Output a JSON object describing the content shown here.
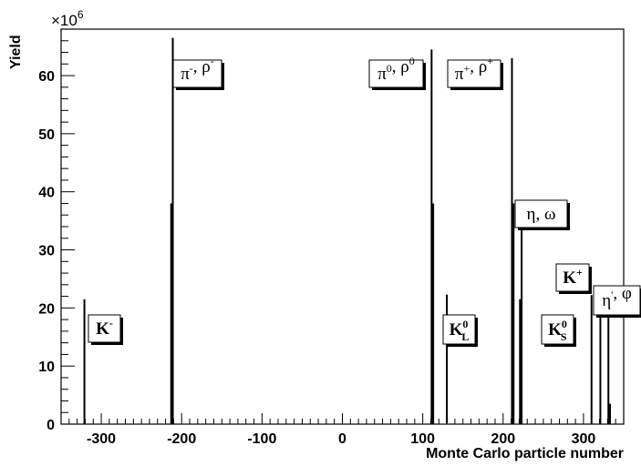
{
  "chart_data": {
    "type": "bar",
    "xlabel": "Monte Carlo particle number",
    "ylabel": "Yield",
    "y_multiplier": "×10",
    "y_multiplier_exp": "6",
    "xlim": [
      -350,
      350
    ],
    "ylim": [
      0,
      68
    ],
    "x_ticks": [
      -300,
      -200,
      -100,
      0,
      100,
      200,
      300
    ],
    "y_ticks": [
      0,
      10,
      20,
      30,
      40,
      50,
      60
    ],
    "grid": false,
    "bars": [
      {
        "x": -321,
        "y": 21.5
      },
      {
        "x": -213,
        "y": 38
      },
      {
        "x": -211,
        "y": 66.5
      },
      {
        "x": 111,
        "y": 64.5
      },
      {
        "x": 113,
        "y": 38
      },
      {
        "x": 130,
        "y": 22.3
      },
      {
        "x": 211,
        "y": 63
      },
      {
        "x": 213,
        "y": 38
      },
      {
        "x": 221,
        "y": 21.5
      },
      {
        "x": 223,
        "y": 37.8
      },
      {
        "x": 310,
        "y": 22.2
      },
      {
        "x": 321,
        "y": 22.8
      },
      {
        "x": 331,
        "y": 19.5
      },
      {
        "x": 333,
        "y": 3.5
      }
    ],
    "annotations": [
      {
        "id": "kminus",
        "parts": [
          {
            "t": "K",
            "s": "n",
            "b": true
          },
          {
            "t": "-",
            "s": "sup",
            "b": true
          }
        ]
      },
      {
        "id": "piminus",
        "parts": [
          {
            "t": "π",
            "s": "n"
          },
          {
            "t": "-",
            "s": "sup"
          },
          {
            "t": ", ρ",
            "s": "n"
          },
          {
            "t": "-",
            "s": "sup"
          }
        ]
      },
      {
        "id": "pizero",
        "parts": [
          {
            "t": "π",
            "s": "n"
          },
          {
            "t": "0",
            "s": "sup",
            "b": true
          },
          {
            "t": ", ρ",
            "s": "n"
          },
          {
            "t": "0",
            "s": "sup",
            "b": true
          }
        ]
      },
      {
        "id": "piplus",
        "parts": [
          {
            "t": "π",
            "s": "n"
          },
          {
            "t": "+",
            "s": "sup",
            "b": true
          },
          {
            "t": ", ρ",
            "s": "n"
          },
          {
            "t": "+",
            "s": "sup",
            "b": true
          }
        ]
      },
      {
        "id": "etaomega",
        "parts": [
          {
            "t": "η, ω",
            "s": "n"
          }
        ]
      },
      {
        "id": "kplus",
        "parts": [
          {
            "t": "K",
            "s": "n",
            "b": true
          },
          {
            "t": "+",
            "s": "sup",
            "b": true
          }
        ]
      },
      {
        "id": "kzerol",
        "parts": [
          {
            "t": "K",
            "s": "n",
            "b": true
          },
          {
            "t": "0",
            "s": "sup",
            "b": true
          },
          {
            "t": "L",
            "s": "sub",
            "b": true
          }
        ]
      },
      {
        "id": "kzeros",
        "parts": [
          {
            "t": "K",
            "s": "n",
            "b": true
          },
          {
            "t": "0",
            "s": "sup",
            "b": true
          },
          {
            "t": "S",
            "s": "sub",
            "b": true
          }
        ]
      },
      {
        "id": "etaprimephi",
        "parts": [
          {
            "t": "η",
            "s": "n"
          },
          {
            "t": "'",
            "s": "sup"
          },
          {
            "t": ", φ",
            "s": "n"
          }
        ]
      }
    ]
  }
}
